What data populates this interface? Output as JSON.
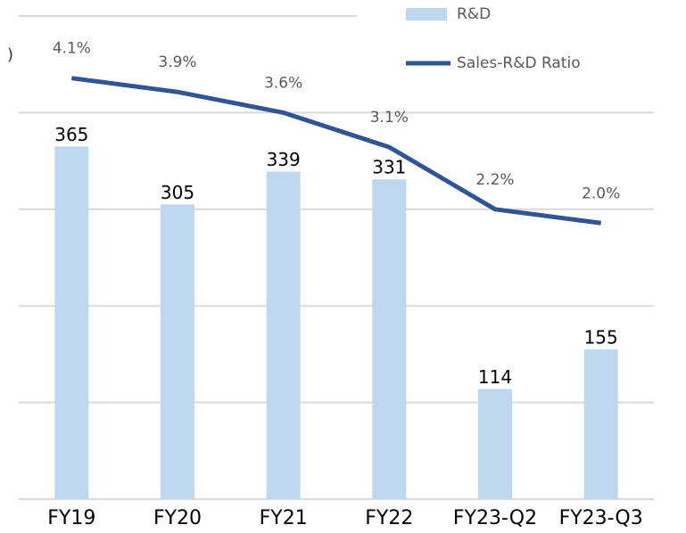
{
  "chart_data": {
    "type": "bar_line",
    "y_axis_label": ")",
    "categories": [
      "FY19",
      "FY20",
      "FY21",
      "FY22",
      "FY23-Q2",
      "FY23-Q3"
    ],
    "series": [
      {
        "name": "R&D",
        "type": "bar",
        "color": "#bdd7ee",
        "values": [
          365,
          305,
          339,
          331,
          114,
          155
        ]
      },
      {
        "name": "Sales-R&D Ratio",
        "type": "line",
        "axis": "y2",
        "color": "#2f5597",
        "values": [
          4.1,
          3.9,
          3.6,
          3.1,
          2.2,
          2.0
        ],
        "value_labels": [
          "4.1%",
          "3.9%",
          "3.6%",
          "3.1%",
          "2.2%",
          "2.0%"
        ]
      }
    ],
    "ylim": [
      0,
      500
    ],
    "yticks": [
      0,
      100,
      200,
      300,
      400,
      500
    ],
    "y2lim": [
      -2,
      5
    ],
    "grid": true,
    "legend": "top-right"
  }
}
